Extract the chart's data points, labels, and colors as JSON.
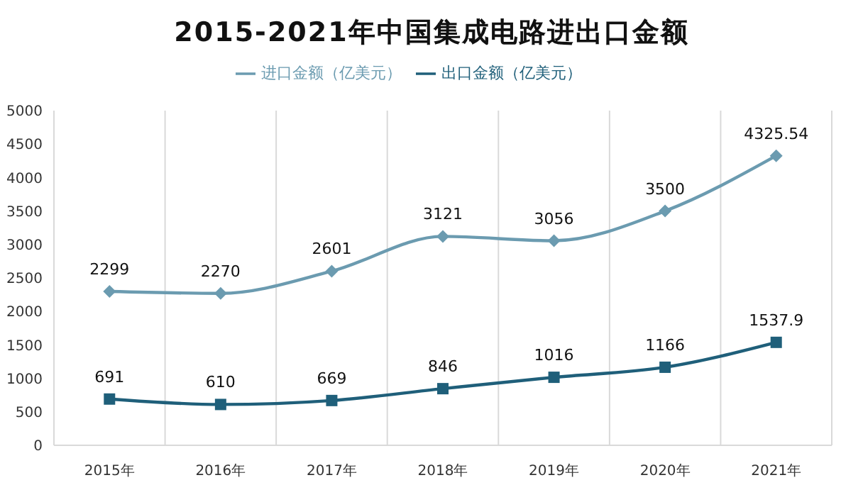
{
  "chart_data": {
    "type": "line",
    "title": "2015-2021年中国集成电路进出口金额",
    "categories": [
      "2015年",
      "2016年",
      "2017年",
      "2018年",
      "2019年",
      "2020年",
      "2021年"
    ],
    "series": [
      {
        "name": "进口金额（亿美元）",
        "color": "#6b9bb0",
        "values": [
          2299,
          2270,
          2601,
          3121,
          3056,
          3500,
          4325.54
        ],
        "marker": "diamond"
      },
      {
        "name": "出口金额（亿美元）",
        "color": "#1f5f7a",
        "values": [
          691,
          610,
          669,
          846,
          1016,
          1166,
          1537.9
        ],
        "marker": "square"
      }
    ],
    "ylim": [
      0,
      5000
    ],
    "yticks": [
      0,
      500,
      1000,
      1500,
      2000,
      2500,
      3000,
      3500,
      4000,
      4500,
      5000
    ],
    "grid": "x",
    "legend": "top",
    "data_labels": true,
    "line_style": "solid"
  }
}
